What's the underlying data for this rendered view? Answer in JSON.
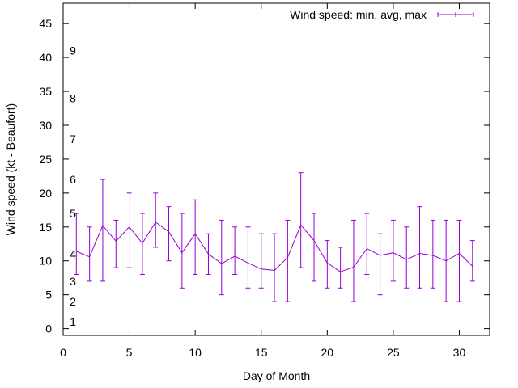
{
  "chart_data": {
    "type": "line",
    "title": "",
    "xlabel": "Day of Month",
    "ylabel": "Wind speed (kt - Beaufort)",
    "xlim": [
      0,
      32.3
    ],
    "ylim": [
      -1,
      48
    ],
    "xticks": [
      0,
      5,
      10,
      15,
      20,
      25,
      30
    ],
    "yticks": [
      0,
      5,
      10,
      15,
      20,
      25,
      30,
      35,
      40,
      45
    ],
    "beaufort_labels": [
      {
        "text": "1",
        "y": 1
      },
      {
        "text": "2",
        "y": 4
      },
      {
        "text": "3",
        "y": 7
      },
      {
        "text": "4",
        "y": 11
      },
      {
        "text": "5",
        "y": 17
      },
      {
        "text": "6",
        "y": 22
      },
      {
        "text": "7",
        "y": 28
      },
      {
        "text": "8",
        "y": 34
      },
      {
        "text": "9",
        "y": 41
      }
    ],
    "legend": {
      "label": "Wind speed: min, avg, max",
      "position": "top-right"
    },
    "colors": {
      "series": "#9400d3",
      "axis": "#000000"
    },
    "series": [
      {
        "name": "Wind speed: min, avg, max",
        "x": [
          1,
          2,
          3,
          4,
          5,
          6,
          7,
          8,
          9,
          10,
          11,
          12,
          13,
          14,
          15,
          16,
          17,
          18,
          19,
          20,
          21,
          22,
          23,
          24,
          25,
          26,
          27,
          28,
          29,
          30,
          31
        ],
        "min": [
          8,
          7,
          7,
          9,
          9,
          8,
          12,
          10,
          6,
          8,
          8,
          5,
          8,
          6,
          6,
          4,
          4,
          9,
          7,
          6,
          6,
          4,
          8,
          5,
          7,
          6,
          6,
          6,
          4,
          4,
          7
        ],
        "avg": [
          11.4,
          10.6,
          15.2,
          12.9,
          15.0,
          12.6,
          15.7,
          14.3,
          11.2,
          14.0,
          11.0,
          9.6,
          10.7,
          9.7,
          8.8,
          8.6,
          10.5,
          15.3,
          13.0,
          9.7,
          8.4,
          9.1,
          11.8,
          10.8,
          11.2,
          10.2,
          11.1,
          10.8,
          10.0,
          11.1,
          9.2
        ],
        "max": [
          17,
          15,
          22,
          16,
          20,
          17,
          20,
          18,
          17,
          19,
          14,
          16,
          15,
          15,
          14,
          14,
          16,
          23,
          17,
          13,
          12,
          16,
          17,
          14,
          16,
          15,
          18,
          16,
          16,
          16,
          13
        ]
      }
    ]
  }
}
